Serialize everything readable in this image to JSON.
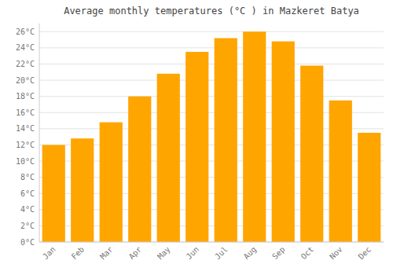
{
  "chart_data": {
    "type": "bar",
    "title": "Average monthly temperatures (°C ) in Mazkeret Batya",
    "categories": [
      "Jan",
      "Feb",
      "Mar",
      "Apr",
      "May",
      "Jun",
      "Jul",
      "Aug",
      "Sep",
      "Oct",
      "Nov",
      "Dec"
    ],
    "values": [
      12.0,
      12.8,
      14.8,
      18.0,
      20.8,
      23.5,
      25.2,
      26.0,
      24.8,
      21.8,
      17.5,
      13.5
    ],
    "color": "#FFA500",
    "ylim": [
      0,
      27
    ],
    "yticks": [
      {
        "value": 0,
        "label": "0°C"
      },
      {
        "value": 2,
        "label": "2°C"
      },
      {
        "value": 4,
        "label": "4°C"
      },
      {
        "value": 6,
        "label": "6°C"
      },
      {
        "value": 8,
        "label": "8°C"
      },
      {
        "value": 10,
        "label": "10°C"
      },
      {
        "value": 12,
        "label": "12°C"
      },
      {
        "value": 14,
        "label": "14°C"
      },
      {
        "value": 16,
        "label": "16°C"
      },
      {
        "value": 18,
        "label": "18°C"
      },
      {
        "value": 20,
        "label": "20°C"
      },
      {
        "value": 22,
        "label": "22°C"
      },
      {
        "value": 24,
        "label": "24°C"
      },
      {
        "value": 26,
        "label": "26°C"
      }
    ],
    "grid": true
  }
}
